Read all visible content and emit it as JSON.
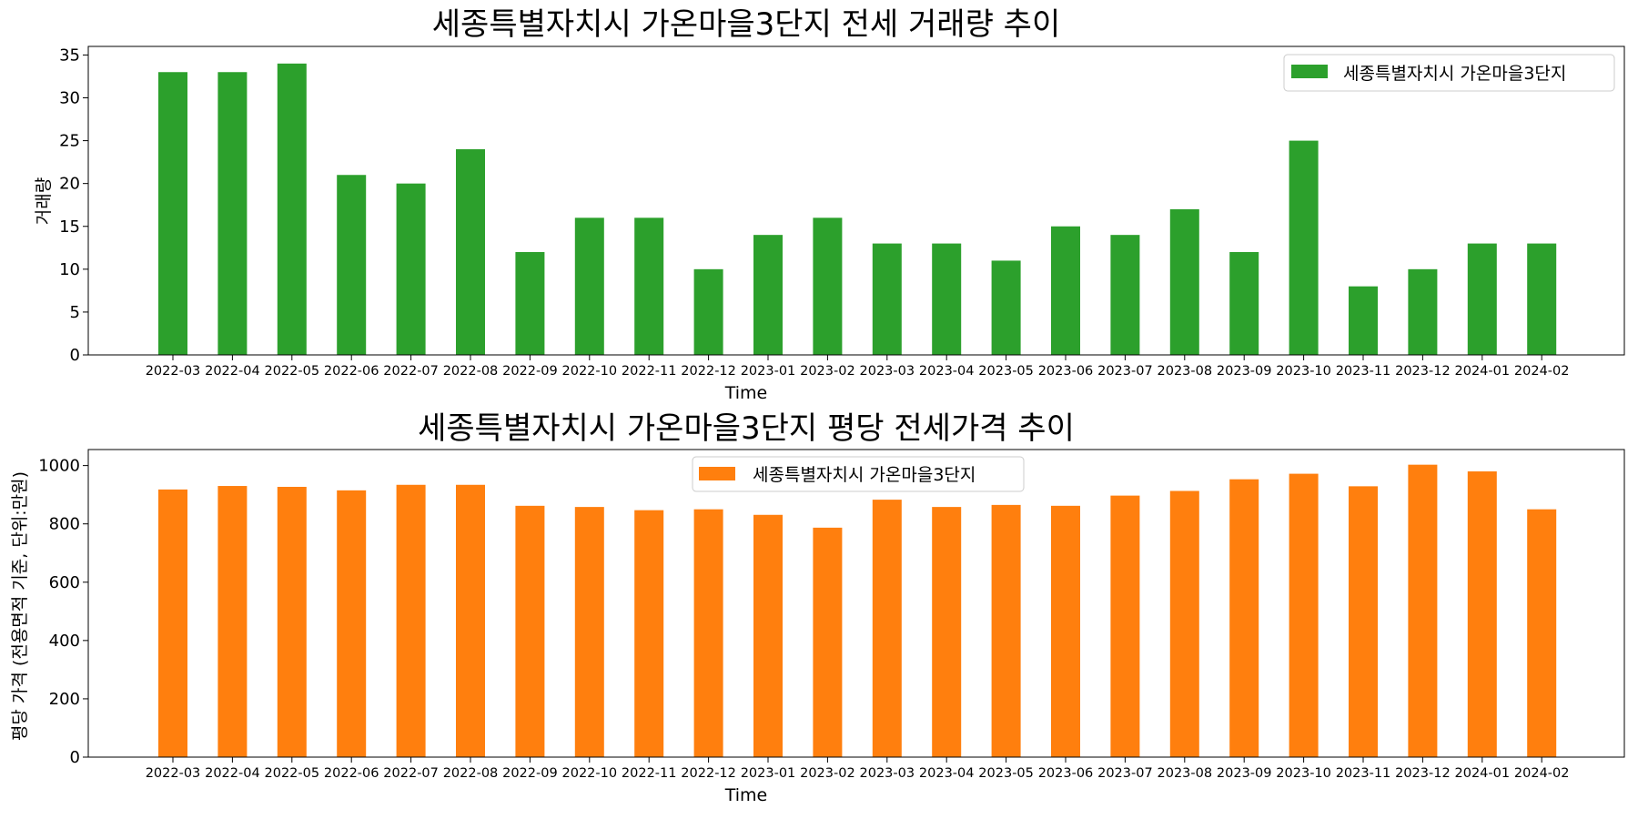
{
  "chart_data": [
    {
      "type": "bar",
      "title": "세종특별자치시 가온마을3단지 전세 거래량 추이",
      "xlabel": "Time",
      "ylabel": "거래량",
      "ylim": [
        0,
        36
      ],
      "yticks": [
        0,
        5,
        10,
        15,
        20,
        25,
        30,
        35
      ],
      "legend_position": "top-right",
      "grid": false,
      "categories": [
        "2022-03",
        "2022-04",
        "2022-05",
        "2022-06",
        "2022-07",
        "2022-08",
        "2022-09",
        "2022-10",
        "2022-11",
        "2022-12",
        "2023-01",
        "2023-02",
        "2023-03",
        "2023-04",
        "2023-05",
        "2023-06",
        "2023-07",
        "2023-08",
        "2023-09",
        "2023-10",
        "2023-11",
        "2023-12",
        "2024-01",
        "2024-02"
      ],
      "series": [
        {
          "name": "세종특별자치시 가온마을3단지",
          "color": "#2ca02c",
          "values": [
            33,
            33,
            34,
            21,
            20,
            24,
            12,
            16,
            16,
            10,
            14,
            16,
            13,
            13,
            11,
            15,
            14,
            17,
            12,
            25,
            8,
            10,
            13,
            13
          ]
        }
      ]
    },
    {
      "type": "bar",
      "title": "세종특별자치시 가온마을3단지 평당 전세가격 추이",
      "xlabel": "Time",
      "ylabel": "평당 가격 (전용면적 기준, 단위:만원)",
      "ylim": [
        0,
        1055
      ],
      "yticks": [
        0,
        200,
        400,
        600,
        800,
        1000
      ],
      "legend_position": "top-center",
      "grid": false,
      "categories": [
        "2022-03",
        "2022-04",
        "2022-05",
        "2022-06",
        "2022-07",
        "2022-08",
        "2022-09",
        "2022-10",
        "2022-11",
        "2022-12",
        "2023-01",
        "2023-02",
        "2023-03",
        "2023-04",
        "2023-05",
        "2023-06",
        "2023-07",
        "2023-08",
        "2023-09",
        "2023-10",
        "2023-11",
        "2023-12",
        "2024-01",
        "2024-02"
      ],
      "series": [
        {
          "name": "세종특별자치시 가온마을3단지",
          "color": "#ff7f0e",
          "values": [
            918,
            930,
            927,
            915,
            934,
            934,
            862,
            858,
            847,
            850,
            831,
            787,
            883,
            858,
            865,
            862,
            897,
            913,
            953,
            972,
            929,
            1003,
            980,
            850
          ]
        }
      ]
    }
  ]
}
